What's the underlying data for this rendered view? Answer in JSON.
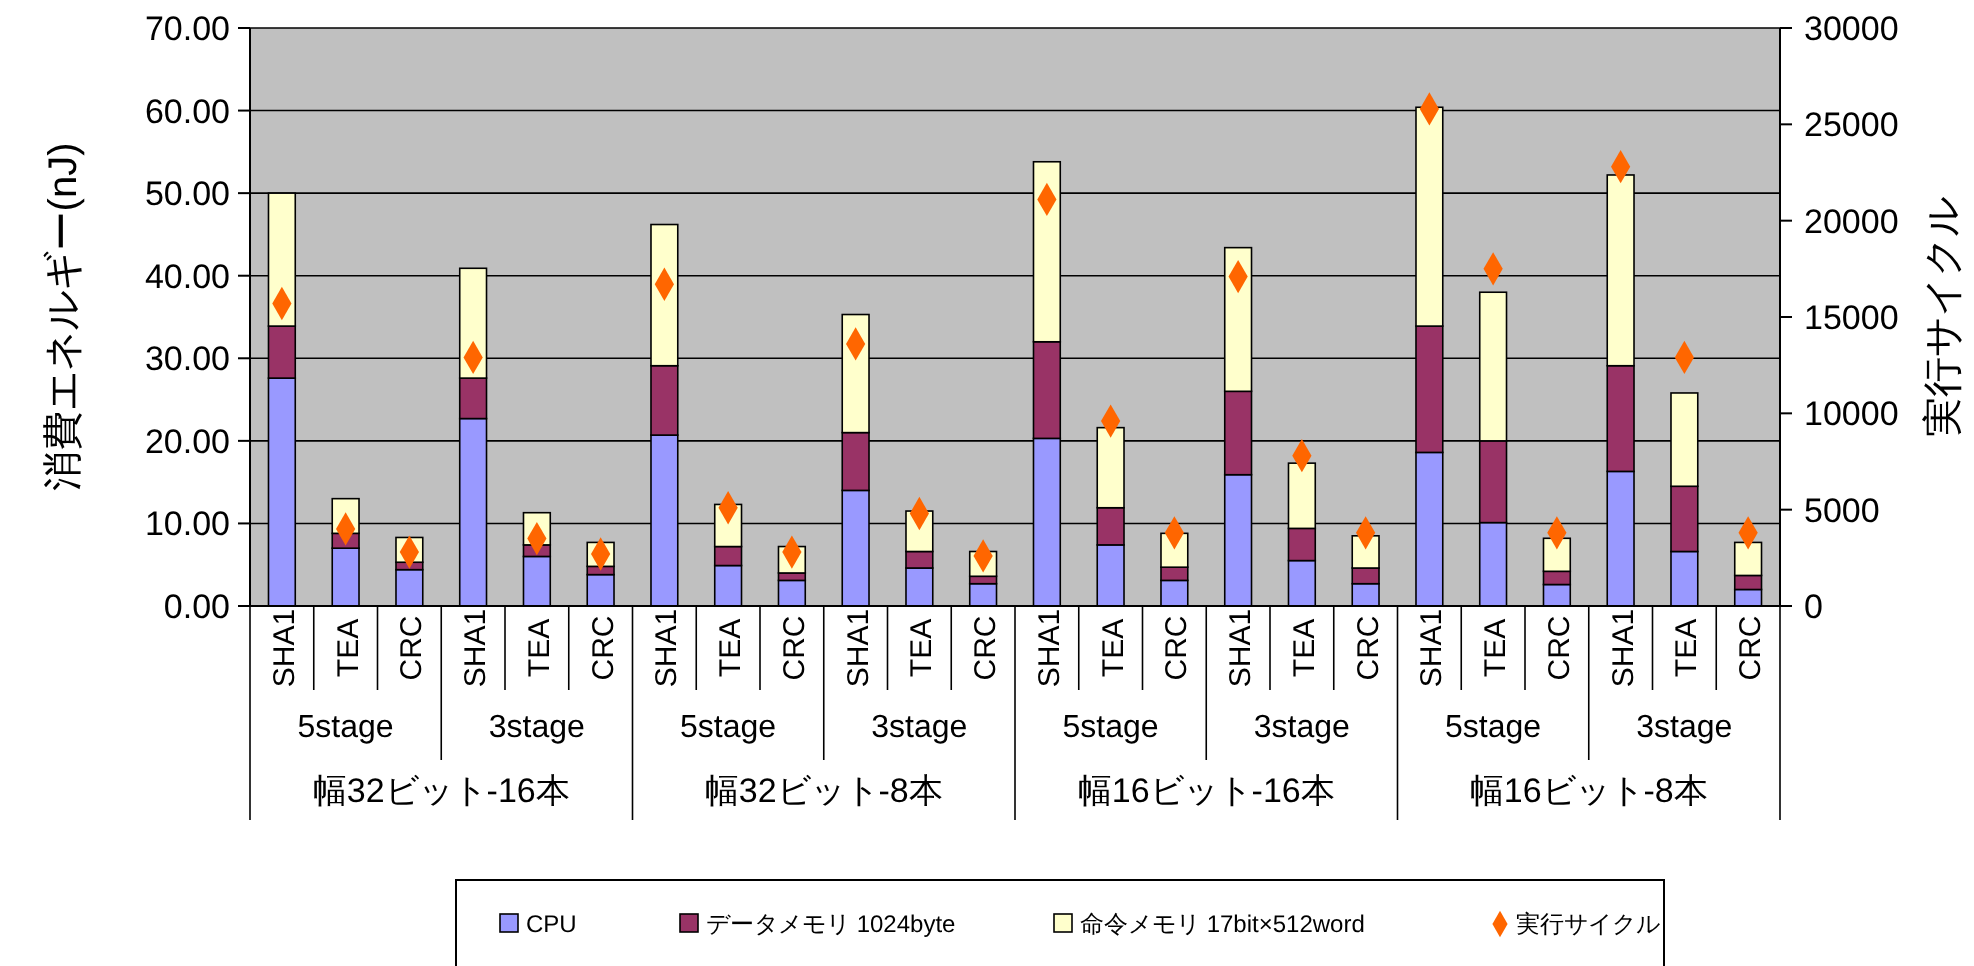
{
  "chart_data": {
    "type": "bar",
    "stacked": true,
    "ylabel": "消費エネルギー(nJ)",
    "y2label": "実行サイクル",
    "categories": [
      "SHA1",
      "TEA",
      "CRC",
      "SHA1",
      "TEA",
      "CRC",
      "SHA1",
      "TEA",
      "CRC",
      "SHA1",
      "TEA",
      "CRC",
      "SHA1",
      "TEA",
      "CRC",
      "SHA1",
      "TEA",
      "CRC",
      "SHA1",
      "TEA",
      "CRC",
      "SHA1",
      "TEA",
      "CRC"
    ],
    "annotations": [
      "5stage",
      "3stage",
      "5stage",
      "3stage",
      "5stage",
      "3stage",
      "5stage",
      "3stage",
      "幅32ビット-16本",
      "幅32ビット-8本",
      "幅16ビット-16本",
      "幅16ビット-8本"
    ],
    "series": [
      {
        "name": "CPU",
        "color": "#9999ff",
        "values": [
          27.6,
          7.0,
          4.4,
          22.7,
          6.0,
          3.8,
          20.7,
          4.9,
          3.1,
          14.0,
          4.6,
          2.7,
          20.3,
          7.4,
          3.1,
          15.9,
          5.5,
          2.7,
          18.6,
          10.1,
          2.6,
          16.3,
          6.6,
          2.0
        ]
      },
      {
        "name": "データメモリ 1024byte",
        "color": "#993366",
        "values": [
          6.3,
          1.8,
          0.9,
          4.9,
          1.4,
          1.0,
          8.4,
          2.3,
          0.9,
          7.0,
          2.0,
          0.9,
          11.7,
          4.5,
          1.6,
          10.1,
          3.9,
          1.9,
          15.3,
          9.9,
          1.6,
          12.8,
          7.9,
          1.7
        ]
      },
      {
        "name": "命令メモリ 17bit×512word",
        "color": "#ffffcc",
        "values": [
          16.1,
          4.2,
          3.0,
          13.3,
          3.9,
          2.9,
          17.1,
          5.1,
          3.2,
          14.3,
          4.9,
          3.0,
          21.8,
          9.7,
          4.1,
          17.4,
          7.9,
          3.9,
          26.5,
          18.0,
          4.0,
          23.1,
          11.3,
          4.0
        ]
      },
      {
        "name": "実行サイクル",
        "type": "scatter",
        "axis": "y2",
        "marker": "diamond",
        "color": "#ff6600",
        "values": [
          15700,
          4000,
          2800,
          12900,
          3500,
          2700,
          16700,
          5100,
          2800,
          13600,
          4800,
          2600,
          21100,
          9600,
          3800,
          17100,
          7800,
          3800,
          25800,
          17500,
          3800,
          22800,
          12900,
          3800
        ]
      }
    ],
    "ylim": [
      0,
      70
    ],
    "yticks": [
      {
        "value": 0,
        "label": "0.00"
      },
      {
        "value": 10,
        "label": "10.00"
      },
      {
        "value": 20,
        "label": "20.00"
      },
      {
        "value": 30,
        "label": "30.00"
      },
      {
        "value": 40,
        "label": "40.00"
      },
      {
        "value": 50,
        "label": "50.00"
      },
      {
        "value": 60,
        "label": "60.00"
      },
      {
        "value": 70,
        "label": "70.00"
      }
    ],
    "y2lim": [
      0,
      30000
    ],
    "y2ticks": [
      0,
      5000,
      10000,
      15000,
      20000,
      25000,
      30000
    ],
    "grid": "y",
    "legend": "bottom"
  }
}
